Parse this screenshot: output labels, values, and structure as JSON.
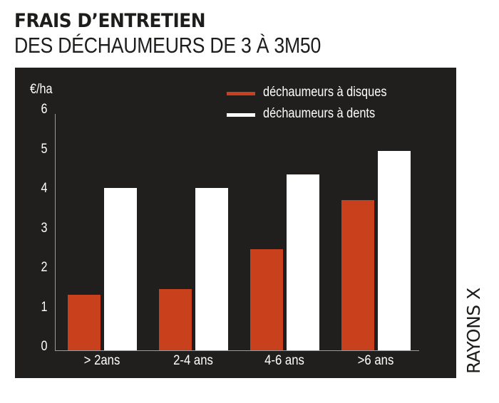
{
  "header": {
    "title": "FRAIS D’ENTRETIEN",
    "subtitle": "DES DÉCHAUMEURS DE 3 À 3M50"
  },
  "credit": "RAYONS X",
  "colors": {
    "background": "#211f1e",
    "disques": "#c9401c",
    "dents": "#ffffff"
  },
  "chart_data": {
    "type": "bar",
    "title": "FRAIS D’ENTRETIEN DES DÉCHAUMEURS DE 3 À 3M50",
    "xlabel": "",
    "ylabel": "€/ha",
    "ylim": [
      0,
      6
    ],
    "yticks": [
      "0",
      "1",
      "2",
      "3",
      "4",
      "5",
      "6"
    ],
    "categories": [
      "> 2ans",
      "2-4 ans",
      "4-6 ans",
      ">6 ans"
    ],
    "series": [
      {
        "name": "déchaumeurs à disques",
        "color": "#c9401c",
        "values": [
          1.4,
          1.55,
          2.55,
          3.8
        ]
      },
      {
        "name": "déchaumeurs à dents",
        "color": "#ffffff",
        "values": [
          4.1,
          4.1,
          4.45,
          5.05
        ]
      }
    ],
    "grid": false,
    "legend_position": "top-right"
  }
}
